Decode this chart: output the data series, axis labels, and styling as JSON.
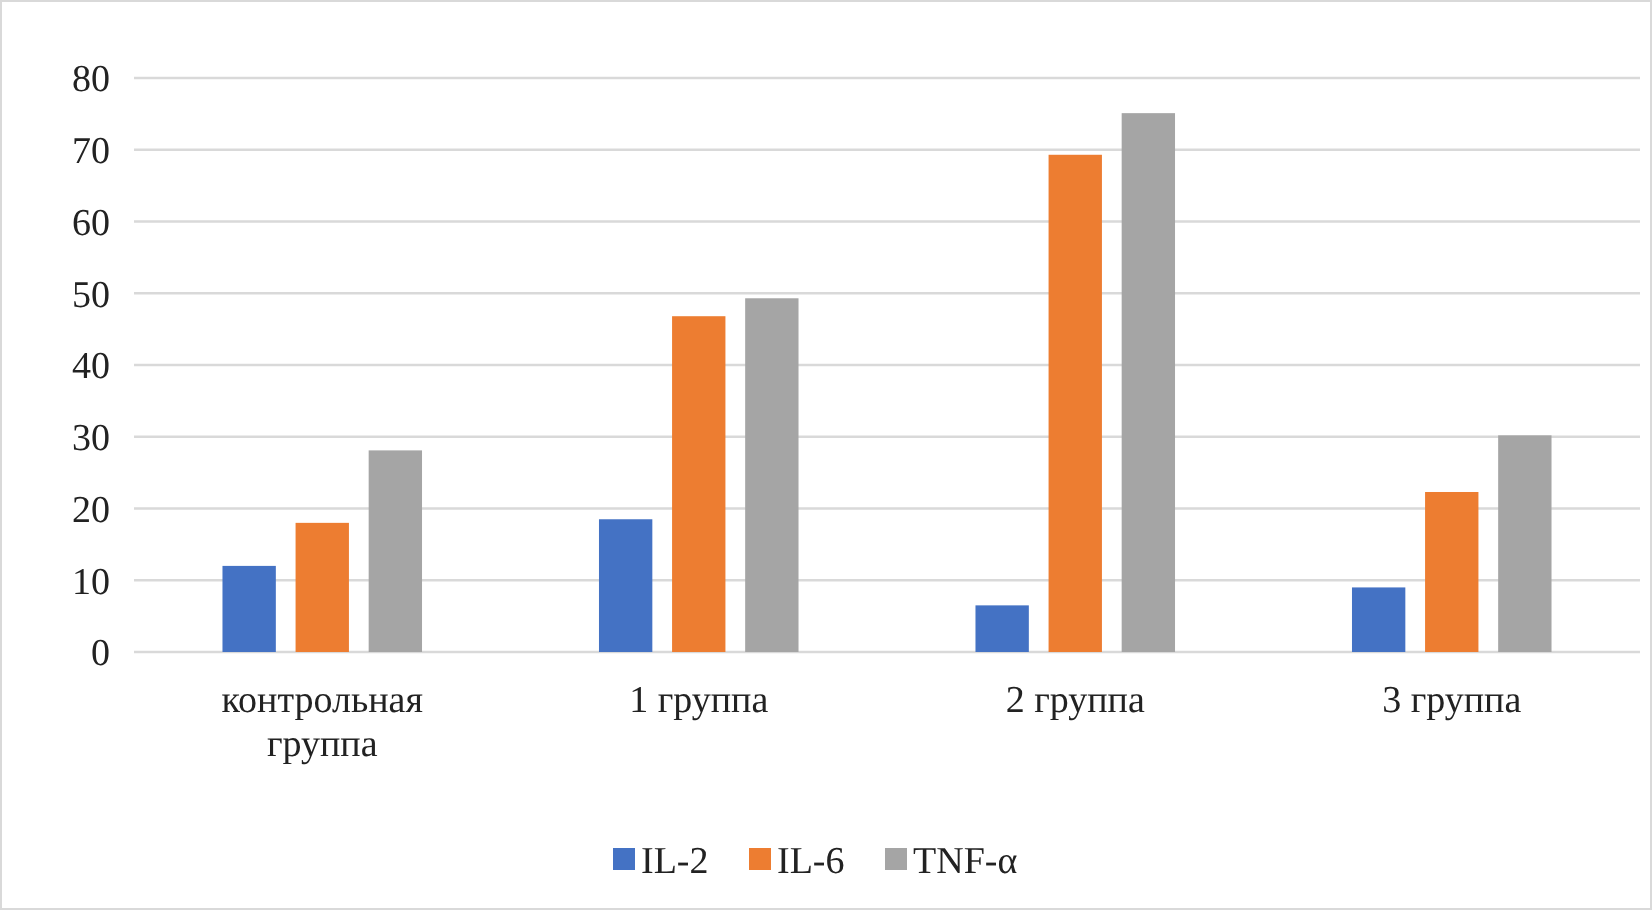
{
  "chart_data": {
    "type": "bar",
    "categories": [
      "контрольная группа",
      "1 группа",
      "2 группа",
      "3 группа"
    ],
    "series": [
      {
        "name": "IL-2",
        "color": "#4472c4",
        "values": [
          12.0,
          18.5,
          6.5,
          9.0
        ]
      },
      {
        "name": "IL-6",
        "color": "#ed7d31",
        "values": [
          18.0,
          46.8,
          69.3,
          22.3
        ]
      },
      {
        "name": "TNF-α",
        "color": "#a5a5a5",
        "values": [
          28.1,
          49.3,
          75.1,
          30.2
        ]
      }
    ],
    "ylim": [
      0,
      80
    ],
    "yticks": [
      0,
      10,
      20,
      30,
      40,
      50,
      60,
      70,
      80
    ],
    "grid": "y",
    "legend": "bottom"
  }
}
